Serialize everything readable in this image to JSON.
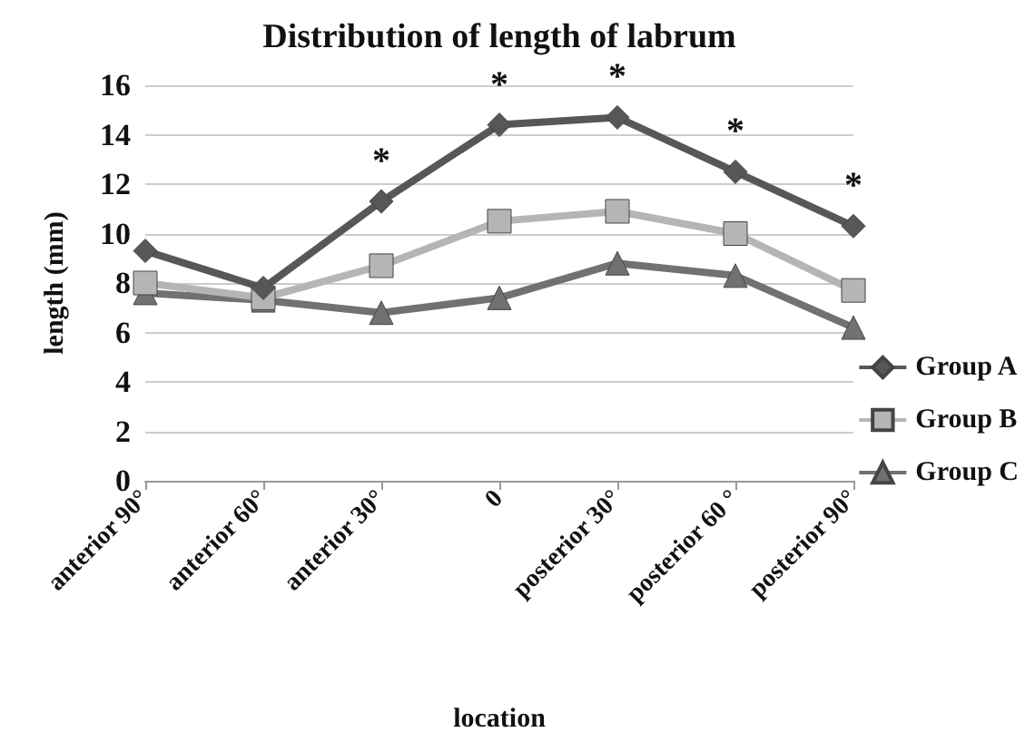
{
  "chart_data": {
    "type": "line",
    "title": "Distribution of length of labrum",
    "xlabel": "location",
    "ylabel": "length (mm)",
    "categories": [
      "anterior 90°",
      "anterior 60°",
      "anterior 30°",
      "0",
      "posterior 30°",
      "posterior 60 °",
      "posterior 90°"
    ],
    "series": [
      {
        "name": "Group A",
        "color": "#575757",
        "marker": "diamond",
        "values": [
          9.3,
          7.8,
          11.3,
          14.4,
          14.7,
          12.5,
          10.3
        ]
      },
      {
        "name": "Group B",
        "color": "#b5b5b5",
        "marker": "square",
        "values": [
          8.0,
          7.4,
          8.7,
          10.5,
          10.9,
          10.0,
          7.7
        ]
      },
      {
        "name": "Group C",
        "color": "#717171",
        "marker": "triangle",
        "values": [
          7.6,
          7.3,
          6.8,
          7.4,
          8.8,
          8.3,
          6.2
        ]
      }
    ],
    "ylim": [
      0,
      16
    ],
    "yticks": [
      0,
      2,
      4,
      6,
      8,
      10,
      12,
      14,
      16
    ],
    "grid": "y",
    "legend": "right",
    "annotations": [
      {
        "text": "*",
        "x": "anterior 30°",
        "y": 11.3
      },
      {
        "text": "*",
        "x": "0",
        "y": 14.4
      },
      {
        "text": "*",
        "x": "posterior 30°",
        "y": 14.7
      },
      {
        "text": "*",
        "x": "posterior 60 °",
        "y": 12.5
      },
      {
        "text": "*",
        "x": "posterior 90°",
        "y": 10.3
      }
    ]
  }
}
